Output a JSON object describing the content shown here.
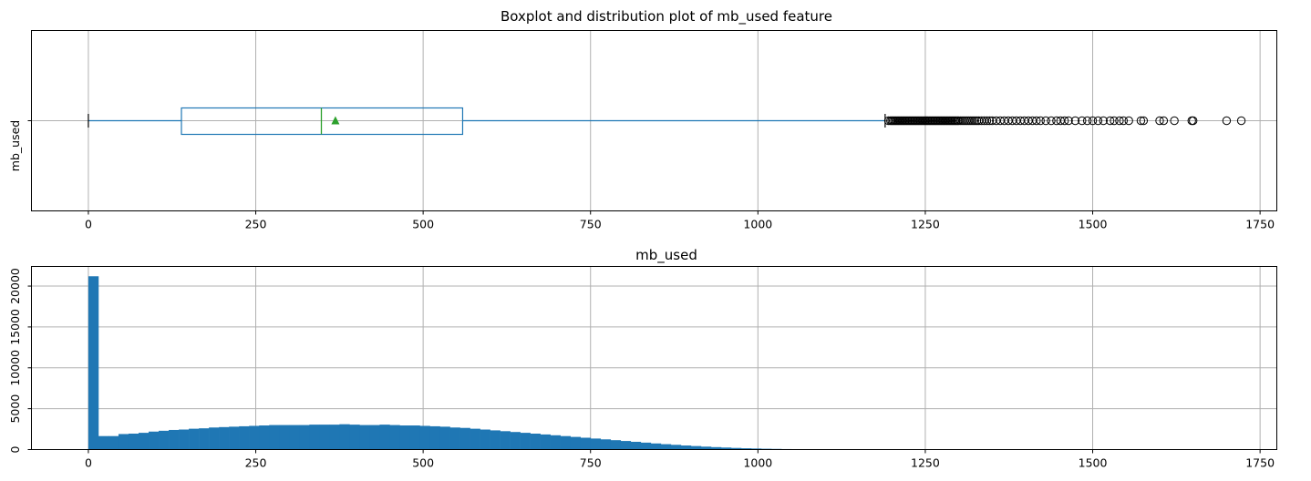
{
  "chart_data": [
    {
      "type": "boxplot",
      "title": "Boxplot and distribution plot of mb_used feature",
      "ylabel": "mb_used",
      "xlabel": "",
      "orientation": "horizontal",
      "xlim": [
        -85,
        1775
      ],
      "xticks": [
        0,
        250,
        500,
        750,
        1000,
        1250,
        1500,
        1750
      ],
      "grid": true,
      "box": {
        "whisker_low": 0,
        "q1": 139,
        "median": 348,
        "mean": 369,
        "q3": 559,
        "whisker_high": 1190
      },
      "outliers": [
        1195,
        1198,
        1200,
        1202,
        1204,
        1206,
        1208,
        1210,
        1212,
        1214,
        1216,
        1218,
        1220,
        1222,
        1224,
        1226,
        1228,
        1230,
        1232,
        1234,
        1236,
        1238,
        1240,
        1242,
        1244,
        1246,
        1248,
        1250,
        1252,
        1254,
        1256,
        1258,
        1260,
        1262,
        1264,
        1266,
        1268,
        1270,
        1272,
        1274,
        1276,
        1278,
        1280,
        1282,
        1284,
        1286,
        1288,
        1290,
        1292,
        1294,
        1296,
        1298,
        1300,
        1303,
        1306,
        1309,
        1312,
        1315,
        1318,
        1321,
        1324,
        1327,
        1330,
        1334,
        1338,
        1342,
        1346,
        1350,
        1356,
        1362,
        1368,
        1374,
        1380,
        1386,
        1392,
        1398,
        1404,
        1410,
        1416,
        1422,
        1430,
        1438,
        1446,
        1452,
        1458,
        1464,
        1474,
        1484,
        1492,
        1500,
        1508,
        1516,
        1526,
        1532,
        1540,
        1546,
        1554,
        1572,
        1576,
        1600,
        1606,
        1622,
        1648,
        1650,
        1700,
        1722
      ],
      "colors": {
        "box": "#1f77b4",
        "median": "#2ca02c",
        "mean": "#2ca02c",
        "outlier": "#000000",
        "whisker_cap": "#000000"
      }
    },
    {
      "type": "histogram",
      "title": "mb_used",
      "xlabel": "",
      "ylabel": "",
      "xlim": [
        -85,
        1775
      ],
      "ylim": [
        0,
        22400
      ],
      "xticks": [
        0,
        250,
        500,
        750,
        1000,
        1250,
        1500,
        1750
      ],
      "yticks": [
        0,
        5000,
        10000,
        15000,
        20000
      ],
      "grid": true,
      "bin_start": 0,
      "bin_width": 15,
      "counts": [
        21200,
        1650,
        1650,
        1900,
        1950,
        2050,
        2200,
        2300,
        2400,
        2450,
        2550,
        2600,
        2700,
        2750,
        2800,
        2850,
        2900,
        2950,
        3000,
        3000,
        3000,
        3000,
        3050,
        3050,
        3050,
        3100,
        3050,
        3000,
        3000,
        3050,
        3000,
        2950,
        2950,
        2900,
        2850,
        2800,
        2700,
        2650,
        2550,
        2450,
        2350,
        2250,
        2150,
        2050,
        1950,
        1850,
        1750,
        1650,
        1550,
        1450,
        1350,
        1250,
        1150,
        1050,
        950,
        850,
        750,
        660,
        580,
        500,
        430,
        360,
        300,
        250,
        200,
        160,
        130,
        100,
        80,
        60,
        45,
        35,
        25,
        20,
        15,
        12,
        10,
        8,
        6,
        5,
        4,
        3,
        2,
        2,
        1,
        1,
        1,
        1,
        1,
        1,
        1,
        1,
        1,
        1,
        1,
        1,
        1,
        1,
        1,
        1,
        1,
        1,
        1,
        1,
        1,
        1,
        1,
        1,
        1,
        1,
        1,
        1,
        1,
        1
      ],
      "colors": {
        "bar": "#1f77b4"
      }
    }
  ]
}
